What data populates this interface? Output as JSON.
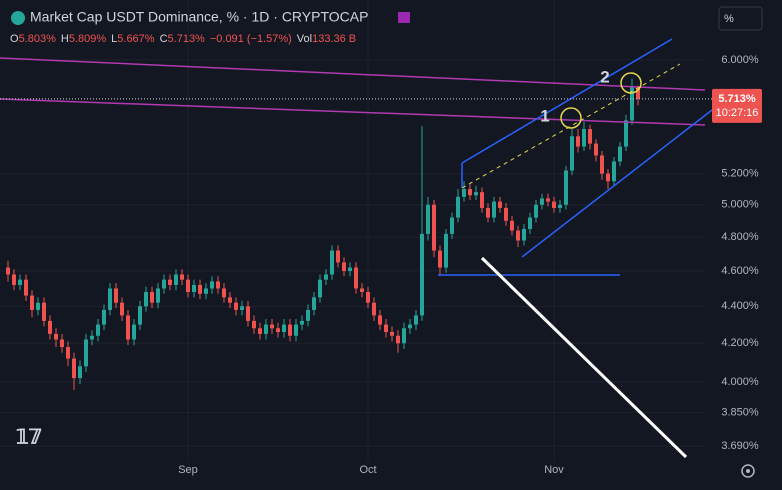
{
  "chart_data": {
    "type": "candlestick",
    "title": "Market Cap USDT Dominance, % · 1D · CRYPTOCAP",
    "ohlc_legend": [
      {
        "label": "O",
        "text": "5.803%"
      },
      {
        "label": "H",
        "text": "5.809%"
      },
      {
        "label": "L",
        "text": "5.667%"
      },
      {
        "label": "C",
        "text": "5.713%"
      },
      {
        "text": "−0.091 (−1.57%)"
      },
      {
        "label": "Vol",
        "text": "133.36 B"
      }
    ],
    "unit_button": "%",
    "price_label": "5.713%",
    "countdown": "10:27:16",
    "annotations": [
      "1",
      "2"
    ],
    "categories": [
      null,
      null,
      null,
      null,
      null,
      null,
      null,
      null,
      null,
      null,
      null,
      null,
      null,
      null,
      null,
      null,
      null,
      null,
      null,
      null,
      null,
      null,
      null,
      null,
      null,
      null,
      null,
      null,
      null,
      null,
      "Sep",
      null,
      null,
      null,
      null,
      null,
      null,
      null,
      null,
      null,
      null,
      null,
      null,
      null,
      null,
      null,
      null,
      null,
      null,
      null,
      null,
      null,
      null,
      null,
      null,
      null,
      null,
      null,
      null,
      null,
      "Oct",
      null,
      null,
      null,
      null,
      null,
      null,
      null,
      null,
      null,
      null,
      null,
      null,
      null,
      null,
      null,
      null,
      null,
      null,
      null,
      null,
      null,
      null,
      null,
      null,
      null,
      null,
      null,
      null,
      null,
      null,
      "Nov",
      null,
      null,
      null,
      null,
      null,
      null,
      null,
      null,
      null,
      null,
      null,
      null,
      null,
      null
    ],
    "open": [
      4.62,
      4.58,
      4.52,
      4.55,
      4.46,
      4.38,
      4.42,
      4.32,
      4.25,
      4.22,
      4.18,
      4.12,
      4.02,
      4.08,
      4.22,
      4.24,
      4.3,
      4.38,
      4.5,
      4.42,
      4.35,
      4.22,
      4.3,
      4.4,
      4.48,
      4.42,
      4.5,
      4.55,
      4.52,
      4.58,
      4.55,
      4.48,
      4.52,
      4.47,
      4.5,
      4.54,
      4.5,
      4.45,
      4.42,
      4.38,
      4.4,
      4.32,
      4.28,
      4.25,
      4.3,
      4.28,
      4.26,
      4.3,
      4.24,
      4.3,
      4.32,
      4.38,
      4.45,
      4.55,
      4.58,
      4.72,
      4.65,
      4.6,
      4.62,
      4.5,
      4.48,
      4.42,
      4.35,
      4.3,
      4.26,
      4.24,
      4.2,
      4.28,
      4.3,
      4.35,
      4.82,
      5.0,
      4.72,
      4.62,
      4.82,
      4.92,
      5.05,
      5.1,
      5.06,
      5.08,
      4.98,
      4.92,
      5.02,
      4.98,
      4.9,
      4.84,
      4.78,
      4.85,
      4.92,
      5.0,
      5.04,
      5.02,
      4.98,
      5.0,
      5.22,
      5.45,
      5.38,
      5.5,
      5.4,
      5.32,
      5.2,
      5.15,
      5.28,
      5.38,
      5.56,
      5.803
    ],
    "high": [
      4.66,
      4.61,
      4.58,
      4.58,
      4.49,
      4.45,
      4.45,
      4.35,
      4.28,
      4.25,
      4.21,
      4.15,
      4.11,
      4.25,
      4.27,
      4.33,
      4.41,
      4.53,
      4.53,
      4.45,
      4.38,
      4.33,
      4.43,
      4.51,
      4.51,
      4.53,
      4.58,
      4.58,
      4.61,
      4.61,
      4.58,
      4.55,
      4.55,
      4.53,
      4.57,
      4.57,
      4.53,
      4.48,
      4.45,
      4.43,
      4.43,
      4.35,
      4.31,
      4.33,
      4.33,
      4.31,
      4.33,
      4.33,
      4.33,
      4.35,
      4.41,
      4.48,
      4.58,
      4.61,
      4.75,
      4.75,
      4.68,
      4.65,
      4.65,
      4.53,
      4.51,
      4.45,
      4.38,
      4.33,
      4.29,
      4.27,
      4.31,
      4.33,
      4.38,
      5.52,
      5.05,
      5.03,
      4.75,
      4.85,
      4.95,
      5.1,
      5.15,
      5.13,
      5.12,
      5.11,
      5.01,
      5.05,
      5.05,
      5.01,
      4.93,
      4.87,
      4.88,
      4.95,
      5.03,
      5.07,
      5.07,
      5.05,
      5.03,
      5.25,
      5.5,
      5.5,
      5.55,
      5.53,
      5.43,
      5.35,
      5.23,
      5.31,
      5.41,
      5.6,
      5.86,
      5.809
    ],
    "low": [
      4.54,
      4.49,
      4.49,
      4.43,
      4.34,
      4.35,
      4.29,
      4.22,
      4.18,
      4.15,
      4.08,
      3.96,
      3.99,
      4.05,
      4.19,
      4.21,
      4.27,
      4.35,
      4.39,
      4.32,
      4.19,
      4.19,
      4.27,
      4.37,
      4.39,
      4.39,
      4.47,
      4.49,
      4.49,
      4.52,
      4.45,
      4.45,
      4.44,
      4.44,
      4.47,
      4.47,
      4.42,
      4.39,
      4.35,
      4.35,
      4.29,
      4.25,
      4.22,
      4.22,
      4.25,
      4.23,
      4.23,
      4.21,
      4.21,
      4.27,
      4.29,
      4.35,
      4.42,
      4.52,
      4.55,
      4.62,
      4.57,
      4.57,
      4.47,
      4.45,
      4.39,
      4.32,
      4.27,
      4.23,
      4.21,
      4.15,
      4.17,
      4.25,
      4.27,
      4.32,
      4.78,
      4.68,
      4.58,
      4.59,
      4.79,
      4.89,
      5.02,
      5.03,
      5.03,
      4.95,
      4.89,
      4.89,
      4.95,
      4.87,
      4.81,
      4.74,
      4.75,
      4.82,
      4.89,
      4.97,
      4.99,
      4.95,
      4.95,
      4.97,
      5.19,
      5.34,
      5.35,
      5.36,
      5.28,
      5.16,
      5.1,
      5.12,
      5.25,
      5.35,
      5.53,
      5.667
    ],
    "close": [
      4.58,
      4.52,
      4.55,
      4.46,
      4.38,
      4.42,
      4.32,
      4.25,
      4.22,
      4.18,
      4.12,
      4.02,
      4.08,
      4.22,
      4.24,
      4.3,
      4.38,
      4.5,
      4.42,
      4.35,
      4.22,
      4.3,
      4.4,
      4.48,
      4.42,
      4.5,
      4.55,
      4.52,
      4.58,
      4.55,
      4.48,
      4.52,
      4.47,
      4.5,
      4.54,
      4.5,
      4.45,
      4.42,
      4.38,
      4.4,
      4.32,
      4.28,
      4.25,
      4.3,
      4.28,
      4.26,
      4.3,
      4.24,
      4.3,
      4.32,
      4.38,
      4.45,
      4.55,
      4.58,
      4.72,
      4.65,
      4.6,
      4.62,
      4.5,
      4.48,
      4.42,
      4.35,
      4.3,
      4.26,
      4.24,
      4.2,
      4.28,
      4.3,
      4.35,
      4.82,
      5.0,
      4.72,
      4.62,
      4.82,
      4.92,
      5.05,
      5.1,
      5.06,
      5.08,
      4.98,
      4.92,
      5.02,
      4.98,
      4.9,
      4.84,
      4.78,
      4.85,
      4.92,
      5.0,
      5.04,
      5.02,
      4.98,
      5.0,
      5.22,
      5.45,
      5.38,
      5.5,
      5.4,
      5.32,
      5.2,
      5.15,
      5.28,
      5.38,
      5.56,
      5.803,
      5.713
    ],
    "ylim": [
      3.617,
      6.47
    ],
    "log_scale": true,
    "yticks": [
      {
        "value": 3.69,
        "label": "3.690%"
      },
      {
        "value": 3.85,
        "label": "3.850%"
      },
      {
        "value": 4,
        "label": "4.000%"
      },
      {
        "value": 4.2,
        "label": "4.200%"
      },
      {
        "value": 4.4,
        "label": "4.400%"
      },
      {
        "value": 4.6,
        "label": "4.600%"
      },
      {
        "value": 4.8,
        "label": "4.800%"
      },
      {
        "value": 5,
        "label": "5.000%"
      },
      {
        "value": 5.2,
        "label": "5.200%"
      },
      {
        "value": 6,
        "label": "6.000%"
      }
    ],
    "grid": true,
    "up_color": "#26a69a",
    "down_color": "#ef5350"
  }
}
